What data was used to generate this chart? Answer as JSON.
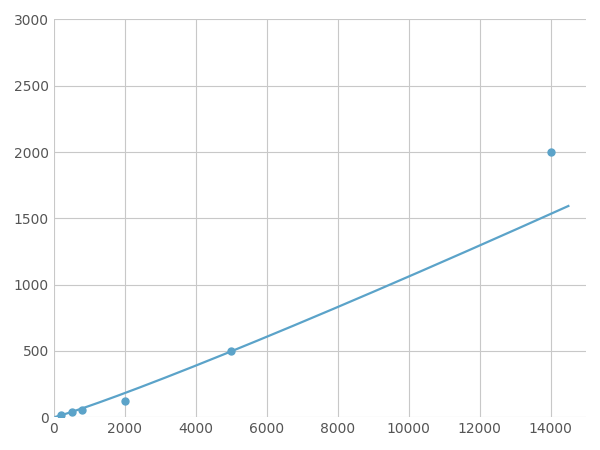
{
  "x_points": [
    200,
    500,
    800,
    2000,
    5000,
    14000
  ],
  "y_points": [
    20,
    40,
    55,
    125,
    500,
    2000
  ],
  "line_color": "#5ba3c9",
  "marker_color": "#5ba3c9",
  "marker_size": 5,
  "line_width": 1.6,
  "xlim": [
    0,
    15000
  ],
  "ylim": [
    0,
    3000
  ],
  "xticks": [
    0,
    2000,
    4000,
    6000,
    8000,
    10000,
    12000,
    14000
  ],
  "yticks": [
    0,
    500,
    1000,
    1500,
    2000,
    2500,
    3000
  ],
  "grid_color": "#c8c8c8",
  "background_color": "#ffffff",
  "tick_label_color": "#555555",
  "tick_label_fontsize": 10,
  "figsize": [
    6.0,
    4.5
  ],
  "dpi": 100
}
